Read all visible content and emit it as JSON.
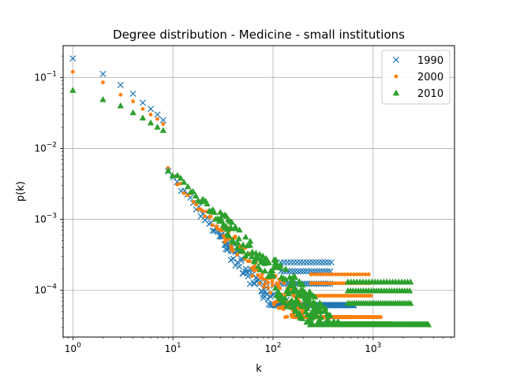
{
  "chart_data": {
    "type": "scatter",
    "title": "Degree distribution - Medicine - small institutions",
    "xlabel": "k",
    "ylabel": "p(k)",
    "xscale": "log",
    "yscale": "log",
    "xlim": [
      0.8,
      6500
    ],
    "ylim": [
      2.2e-05,
      0.28
    ],
    "grid": true,
    "legend_position": "upper-right",
    "x_ticks": [
      {
        "value": 1,
        "base": "10",
        "exp": "0"
      },
      {
        "value": 10,
        "base": "10",
        "exp": "1"
      },
      {
        "value": 100,
        "base": "10",
        "exp": "2"
      },
      {
        "value": 1000,
        "base": "10",
        "exp": "3"
      }
    ],
    "y_ticks": [
      {
        "value": 0.0001,
        "base": "10",
        "exp": "−4"
      },
      {
        "value": 0.001,
        "base": "10",
        "exp": "−3"
      },
      {
        "value": 0.01,
        "base": "10",
        "exp": "−2"
      },
      {
        "value": 0.1,
        "base": "10",
        "exp": "−1"
      }
    ],
    "series": [
      {
        "name": "1990",
        "marker": "x",
        "color": "#1f77b4",
        "head_points": [
          [
            1,
            0.185
          ],
          [
            2,
            0.112
          ],
          [
            3,
            0.078
          ],
          [
            4,
            0.059
          ],
          [
            5,
            0.044
          ],
          [
            6,
            0.036
          ],
          [
            7,
            0.03
          ],
          [
            8,
            0.025
          ]
        ],
        "power_law": {
          "c": 0.21,
          "alpha": 1.75,
          "k_min": 9,
          "k_max": 240,
          "floor": 6.2e-05
        },
        "floor_band": {
          "y": 6.2e-05,
          "k_min": 150,
          "k_max": 650
        }
      },
      {
        "name": "2000",
        "marker": "dot",
        "color": "#ff7f0e",
        "head_points": [
          [
            1,
            0.12
          ],
          [
            2,
            0.085
          ],
          [
            3,
            0.057
          ],
          [
            4,
            0.046
          ],
          [
            5,
            0.036
          ],
          [
            6,
            0.03
          ],
          [
            7,
            0.026
          ],
          [
            8,
            0.022
          ]
        ],
        "power_law": {
          "c": 0.16,
          "alpha": 1.6,
          "k_min": 9,
          "k_max": 600,
          "floor": 4.2e-05
        },
        "floor_band": {
          "y": 4.2e-05,
          "k_min": 300,
          "k_max": 1200
        }
      },
      {
        "name": "2010",
        "marker": "triangle",
        "color": "#2ca02c",
        "head_points": [
          [
            1,
            0.066
          ],
          [
            2,
            0.049
          ],
          [
            3,
            0.04
          ],
          [
            4,
            0.032
          ],
          [
            5,
            0.027
          ],
          [
            6,
            0.023
          ],
          [
            7,
            0.02
          ],
          [
            8,
            0.018
          ]
        ],
        "power_law": {
          "c": 0.13,
          "alpha": 1.45,
          "k_min": 9,
          "k_max": 1500,
          "floor": 3.3e-05
        },
        "floor_band": {
          "y": 3.3e-05,
          "k_min": 700,
          "k_max": 3600
        }
      }
    ]
  }
}
